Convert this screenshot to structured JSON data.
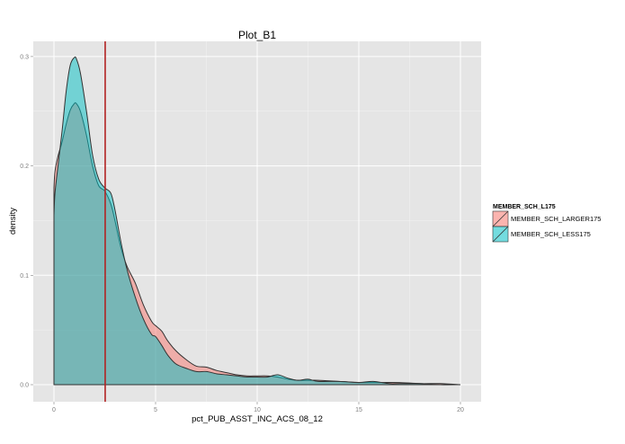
{
  "chart_data": {
    "type": "area",
    "subtype": "density",
    "title": "Plot_B1",
    "xlabel": "pct_PUB_ASST_INC_ACS_08_12",
    "ylabel": "density",
    "xlim": [
      -0.5,
      21
    ],
    "ylim": [
      -0.015,
      0.31
    ],
    "x_ticks": [
      0,
      5,
      10,
      15,
      20
    ],
    "x_tick_labels": [
      "0",
      "5",
      "10",
      "15",
      "20"
    ],
    "y_ticks": [
      0.0,
      0.1,
      0.2,
      0.3
    ],
    "y_tick_labels": [
      "0.0",
      "0.1",
      "0.2",
      "0.3"
    ],
    "grid": true,
    "legend_position": "right",
    "legend_title": "MEMBER_SCH_L175",
    "vline": {
      "x": 2.52,
      "color": "#b22222"
    },
    "series": [
      {
        "name": "MEMBER_SCH_LARGER175",
        "color": "#f8766d",
        "x": [
          0,
          0.05,
          0.2,
          0.4,
          0.6,
          0.8,
          1.0,
          1.1,
          1.3,
          1.6,
          1.9,
          2.2,
          2.5,
          2.8,
          3.0,
          3.3,
          3.6,
          4.0,
          4.4,
          4.8,
          5.0,
          5.3,
          5.6,
          6.0,
          6.5,
          7.0,
          7.5,
          8.0,
          8.5,
          9.0,
          9.5,
          10.0,
          10.5,
          11.0,
          11.5,
          12.0,
          12.5,
          13.0,
          14.0,
          15.0,
          16.0,
          17.0,
          18.0,
          19.0,
          20.0
        ],
        "y": [
          0.18,
          0.195,
          0.209,
          0.222,
          0.238,
          0.251,
          0.257,
          0.257,
          0.25,
          0.228,
          0.2,
          0.182,
          0.177,
          0.165,
          0.15,
          0.125,
          0.108,
          0.093,
          0.073,
          0.058,
          0.054,
          0.049,
          0.04,
          0.031,
          0.023,
          0.017,
          0.016,
          0.013,
          0.011,
          0.009,
          0.008,
          0.008,
          0.008,
          0.007,
          0.005,
          0.004,
          0.004,
          0.004,
          0.003,
          0.002,
          0.002,
          0.002,
          0.001,
          0.001,
          0.0
        ]
      },
      {
        "name": "MEMBER_SCH_LESS175",
        "color": "#00bfc4",
        "x": [
          0,
          0.05,
          0.2,
          0.4,
          0.6,
          0.8,
          1.0,
          1.1,
          1.3,
          1.6,
          1.9,
          2.2,
          2.5,
          2.8,
          3.0,
          3.3,
          3.6,
          4.0,
          4.4,
          4.8,
          5.0,
          5.3,
          5.6,
          6.0,
          6.5,
          7.0,
          7.5,
          8.0,
          8.5,
          9.0,
          9.5,
          10.0,
          10.5,
          11.0,
          11.5,
          12.0,
          12.5,
          13.0,
          14.0,
          15.0,
          15.7,
          16.5,
          17.0,
          18.0,
          19.0,
          20.0
        ],
        "y": [
          0.155,
          0.175,
          0.2,
          0.232,
          0.268,
          0.292,
          0.299,
          0.298,
          0.285,
          0.25,
          0.21,
          0.188,
          0.18,
          0.175,
          0.16,
          0.13,
          0.105,
          0.08,
          0.06,
          0.046,
          0.044,
          0.036,
          0.027,
          0.019,
          0.015,
          0.012,
          0.012,
          0.01,
          0.009,
          0.008,
          0.007,
          0.007,
          0.007,
          0.009,
          0.006,
          0.004,
          0.005,
          0.003,
          0.003,
          0.002,
          0.003,
          0.001,
          0.001,
          0.001,
          0.0,
          0.0
        ]
      }
    ]
  },
  "legend": {
    "title": "MEMBER_SCH_L175",
    "items": [
      {
        "label": "MEMBER_SCH_LARGER175",
        "color": "#f8766d"
      },
      {
        "label": "MEMBER_SCH_LESS175",
        "color": "#00bfc4"
      }
    ]
  }
}
